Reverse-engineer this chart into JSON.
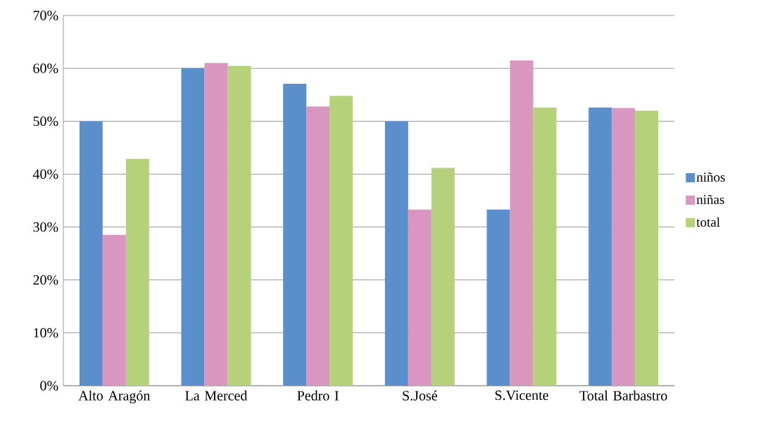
{
  "chart_data": {
    "type": "bar",
    "categories": [
      "Alto Aragón",
      "La Merced",
      "Pedro I",
      "S.José",
      "S.Vicente",
      "Total Barbastro"
    ],
    "series": [
      {
        "name": "niños",
        "color": "#5b8fcc",
        "values": [
          50,
          60.1,
          57.1,
          50,
          33.3,
          52.6
        ]
      },
      {
        "name": "niñas",
        "color": "#d896c0",
        "values": [
          28.5,
          61,
          52.8,
          33.3,
          61.5,
          52.5
        ]
      },
      {
        "name": "total",
        "color": "#b5d27a",
        "values": [
          42.9,
          60.5,
          54.8,
          41.2,
          52.6,
          52
        ]
      }
    ],
    "ylim": [
      0,
      70
    ],
    "yticks": [
      {
        "value": 0,
        "label": "0%"
      },
      {
        "value": 10,
        "label": "10%"
      },
      {
        "value": 20,
        "label": "20%"
      },
      {
        "value": 30,
        "label": "30%"
      },
      {
        "value": 40,
        "label": "40%"
      },
      {
        "value": 50,
        "label": "50%"
      },
      {
        "value": 60,
        "label": "60%"
      },
      {
        "value": 70,
        "label": "70%"
      }
    ],
    "grid": "y",
    "legend": "right"
  }
}
